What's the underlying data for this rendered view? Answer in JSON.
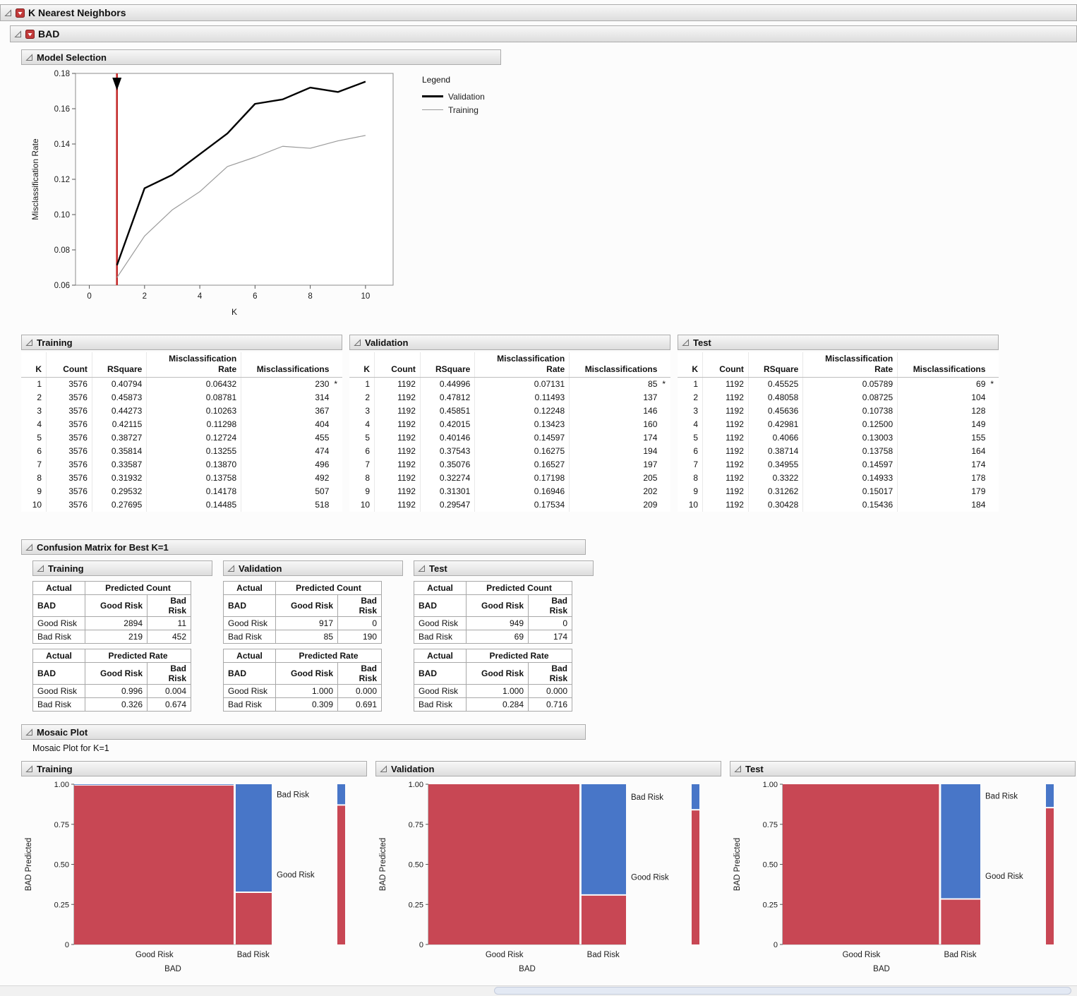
{
  "outline": {
    "knn_title": "K Nearest Neighbors",
    "bad_title": "BAD",
    "model_selection_title": "Model Selection",
    "confusion_title": "Confusion Matrix for Best K=1",
    "mosaic_title": "Mosaic Plot",
    "mosaic_subtitle": "Mosaic Plot for K=1"
  },
  "legend": {
    "title": "Legend",
    "entries": [
      {
        "label": "Validation",
        "stroke": "#000000",
        "width": 3
      },
      {
        "label": "Training",
        "stroke": "#9B9B9B",
        "width": 1
      }
    ]
  },
  "chart_data": [
    {
      "type": "line",
      "title": "Model Selection",
      "xlabel": "K",
      "ylabel": "Misclassification Rate",
      "x": [
        1,
        2,
        3,
        4,
        5,
        6,
        7,
        8,
        9,
        10
      ],
      "series": [
        {
          "name": "Validation",
          "values": [
            0.07131,
            0.11493,
            0.12248,
            0.13423,
            0.14597,
            0.16275,
            0.16527,
            0.17198,
            0.16946,
            0.17534
          ]
        },
        {
          "name": "Training",
          "values": [
            0.06432,
            0.08781,
            0.10263,
            0.11298,
            0.12724,
            0.13255,
            0.1387,
            0.13758,
            0.14178,
            0.14485
          ]
        }
      ],
      "xlim": [
        -0.5,
        11
      ],
      "ylim": [
        0.06,
        0.18
      ],
      "xticks": [
        0,
        2,
        4,
        6,
        8,
        10
      ],
      "yticks": [
        "0.18",
        "0.16",
        "0.14",
        "0.12",
        "0.10",
        "0.08",
        "0.06"
      ],
      "selected_k_line": {
        "x": 1,
        "color": "#C42B2B"
      },
      "grid": false,
      "legend_position": "right"
    },
    {
      "type": "mosaic",
      "panel": "Training",
      "xlabel": "BAD",
      "ylabel": "BAD Predicted",
      "yticks": [
        "0",
        "0.25",
        "0.50",
        "0.75",
        "1.00"
      ],
      "x_categories": [
        "Good Risk",
        "Bad Risk"
      ],
      "y_categories": [
        "Good Risk",
        "Bad Risk"
      ],
      "col_widths": [
        0.8124,
        0.1876
      ],
      "good_risk_rate_by_col": [
        0.996,
        0.326
      ],
      "overall_good_rate": 0.8705,
      "colors": {
        "good": "#C84754",
        "bad": "#4876C8"
      }
    },
    {
      "type": "mosaic",
      "panel": "Validation",
      "xlabel": "BAD",
      "ylabel": "BAD Predicted",
      "yticks": [
        "0",
        "0.25",
        "0.50",
        "0.75",
        "1.00"
      ],
      "x_categories": [
        "Good Risk",
        "Bad Risk"
      ],
      "y_categories": [
        "Good Risk",
        "Bad Risk"
      ],
      "col_widths": [
        0.7693,
        0.2307
      ],
      "good_risk_rate_by_col": [
        1.0,
        0.309
      ],
      "overall_good_rate": 0.8406,
      "colors": {
        "good": "#C84754",
        "bad": "#4876C8"
      }
    },
    {
      "type": "mosaic",
      "panel": "Test",
      "xlabel": "BAD",
      "ylabel": "BAD Predicted",
      "yticks": [
        "0",
        "0.25",
        "0.50",
        "0.75",
        "1.00"
      ],
      "x_categories": [
        "Good Risk",
        "Bad Risk"
      ],
      "y_categories": [
        "Good Risk",
        "Bad Risk"
      ],
      "col_widths": [
        0.7961,
        0.2039
      ],
      "good_risk_rate_by_col": [
        1.0,
        0.284
      ],
      "overall_good_rate": 0.854,
      "colors": {
        "good": "#C84754",
        "bad": "#4876C8"
      }
    }
  ],
  "stats": {
    "columns": [
      "K",
      "Count",
      "RSquare",
      "Misclassification\nRate",
      "Misclassifications"
    ],
    "tables": [
      {
        "title": "Training",
        "rows": [
          [
            "1",
            "3576",
            "0.40794",
            "0.06432",
            "230",
            "*"
          ],
          [
            "2",
            "3576",
            "0.45873",
            "0.08781",
            "314",
            ""
          ],
          [
            "3",
            "3576",
            "0.44273",
            "0.10263",
            "367",
            ""
          ],
          [
            "4",
            "3576",
            "0.42115",
            "0.11298",
            "404",
            ""
          ],
          [
            "5",
            "3576",
            "0.38727",
            "0.12724",
            "455",
            ""
          ],
          [
            "6",
            "3576",
            "0.35814",
            "0.13255",
            "474",
            ""
          ],
          [
            "7",
            "3576",
            "0.33587",
            "0.13870",
            "496",
            ""
          ],
          [
            "8",
            "3576",
            "0.31932",
            "0.13758",
            "492",
            ""
          ],
          [
            "9",
            "3576",
            "0.29532",
            "0.14178",
            "507",
            ""
          ],
          [
            "10",
            "3576",
            "0.27695",
            "0.14485",
            "518",
            ""
          ]
        ]
      },
      {
        "title": "Validation",
        "rows": [
          [
            "1",
            "1192",
            "0.44996",
            "0.07131",
            "85",
            "*"
          ],
          [
            "2",
            "1192",
            "0.47812",
            "0.11493",
            "137",
            ""
          ],
          [
            "3",
            "1192",
            "0.45851",
            "0.12248",
            "146",
            ""
          ],
          [
            "4",
            "1192",
            "0.42015",
            "0.13423",
            "160",
            ""
          ],
          [
            "5",
            "1192",
            "0.40146",
            "0.14597",
            "174",
            ""
          ],
          [
            "6",
            "1192",
            "0.37543",
            "0.16275",
            "194",
            ""
          ],
          [
            "7",
            "1192",
            "0.35076",
            "0.16527",
            "197",
            ""
          ],
          [
            "8",
            "1192",
            "0.32274",
            "0.17198",
            "205",
            ""
          ],
          [
            "9",
            "1192",
            "0.31301",
            "0.16946",
            "202",
            ""
          ],
          [
            "10",
            "1192",
            "0.29547",
            "0.17534",
            "209",
            ""
          ]
        ]
      },
      {
        "title": "Test",
        "rows": [
          [
            "1",
            "1192",
            "0.45525",
            "0.05789",
            "69",
            "*"
          ],
          [
            "2",
            "1192",
            "0.48058",
            "0.08725",
            "104",
            ""
          ],
          [
            "3",
            "1192",
            "0.45636",
            "0.10738",
            "128",
            ""
          ],
          [
            "4",
            "1192",
            "0.42981",
            "0.12500",
            "149",
            ""
          ],
          [
            "5",
            "1192",
            "0.4066",
            "0.13003",
            "155",
            ""
          ],
          [
            "6",
            "1192",
            "0.38714",
            "0.13758",
            "164",
            ""
          ],
          [
            "7",
            "1192",
            "0.34955",
            "0.14597",
            "174",
            ""
          ],
          [
            "8",
            "1192",
            "0.3322",
            "0.14933",
            "178",
            ""
          ],
          [
            "9",
            "1192",
            "0.31262",
            "0.15017",
            "179",
            ""
          ],
          [
            "10",
            "1192",
            "0.30428",
            "0.15436",
            "184",
            ""
          ]
        ]
      }
    ]
  },
  "confusion": {
    "actual_label": "Actual",
    "response_label": "BAD",
    "col_labels": [
      "Good Risk",
      "Bad Risk"
    ],
    "count_header": "Predicted Count",
    "rate_header": "Predicted Rate",
    "panels": [
      {
        "title": "Training",
        "count_rows": [
          [
            "Good Risk",
            "2894",
            "11"
          ],
          [
            "Bad Risk",
            "219",
            "452"
          ]
        ],
        "rate_rows": [
          [
            "Good Risk",
            "0.996",
            "0.004"
          ],
          [
            "Bad Risk",
            "0.326",
            "0.674"
          ]
        ]
      },
      {
        "title": "Validation",
        "count_rows": [
          [
            "Good Risk",
            "917",
            "0"
          ],
          [
            "Bad Risk",
            "85",
            "190"
          ]
        ],
        "rate_rows": [
          [
            "Good Risk",
            "1.000",
            "0.000"
          ],
          [
            "Bad Risk",
            "0.309",
            "0.691"
          ]
        ]
      },
      {
        "title": "Test",
        "count_rows": [
          [
            "Good Risk",
            "949",
            "0"
          ],
          [
            "Bad Risk",
            "69",
            "174"
          ]
        ],
        "rate_rows": [
          [
            "Good Risk",
            "1.000",
            "0.000"
          ],
          [
            "Bad Risk",
            "0.284",
            "0.716"
          ]
        ]
      }
    ]
  }
}
